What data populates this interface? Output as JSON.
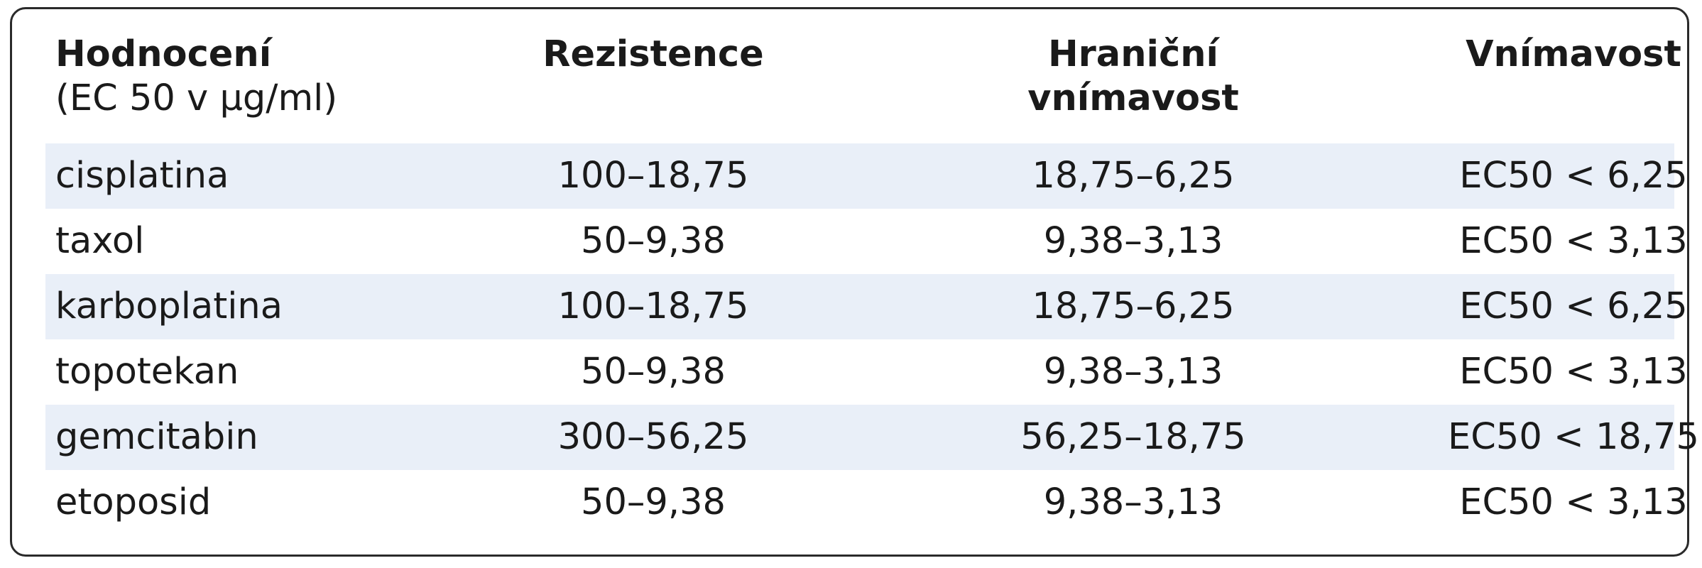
{
  "header": {
    "col1_title": "Hodnocení",
    "col1_subtitle": "(EC 50 v µg/ml)",
    "col2_title": "Rezistence",
    "col3_title_line1": "Hraniční",
    "col3_title_line2": "vnímavost",
    "col4_title": "Vnímavost"
  },
  "rows": [
    {
      "name": "cisplatina",
      "rezistence": "100–18,75",
      "hranicni": "18,75–6,25",
      "vnimavost": "EC50 < 6,25"
    },
    {
      "name": "taxol",
      "rezistence": "50–9,38",
      "hranicni": "9,38–3,13",
      "vnimavost": "EC50 < 3,13"
    },
    {
      "name": "karboplatina",
      "rezistence": "100–18,75",
      "hranicni": "18,75–6,25",
      "vnimavost": "EC50 < 6,25"
    },
    {
      "name": "topotekan",
      "rezistence": "50–9,38",
      "hranicni": "9,38–3,13",
      "vnimavost": "EC50 < 3,13"
    },
    {
      "name": "gemcitabin",
      "rezistence": "300–56,25",
      "hranicni": "56,25–18,75",
      "vnimavost": "EC50 < 18,75"
    },
    {
      "name": "etoposid",
      "rezistence": "50–9,38",
      "hranicni": "9,38–3,13",
      "vnimavost": "EC50 < 3,13"
    }
  ]
}
